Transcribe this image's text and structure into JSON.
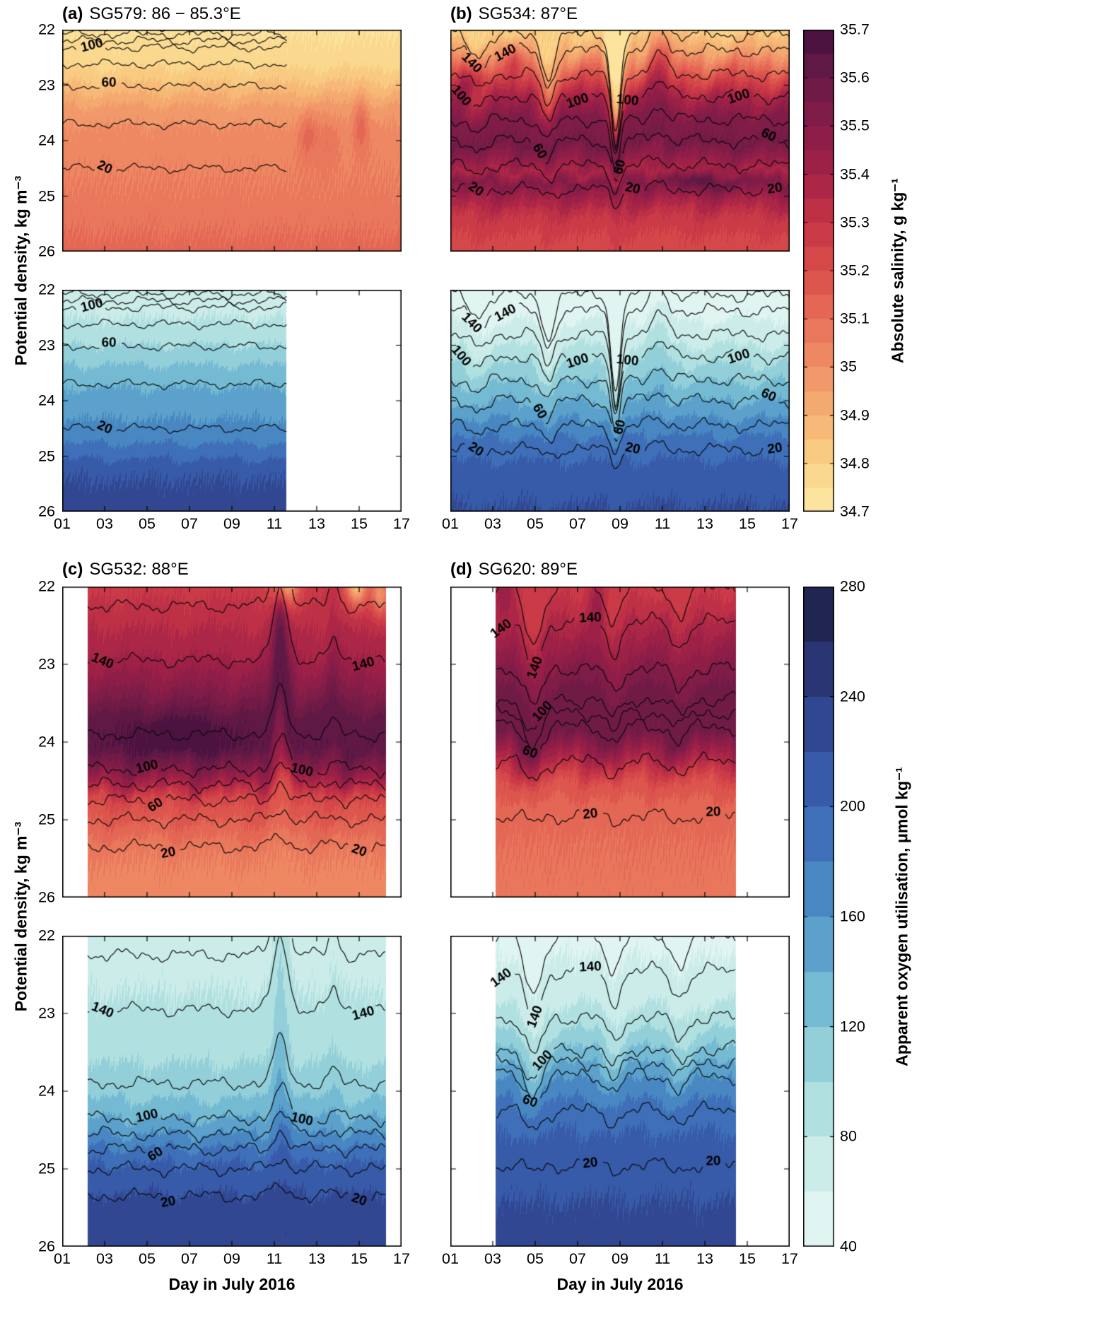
{
  "figure": {
    "ylabel": "Potential density, kg m⁻³",
    "xlabel": "Day in July 2016",
    "background": "#ffffff"
  },
  "chart_data": {
    "type": "heatmap",
    "description": "Four glider sections (a-d). Each panel pair: top = absolute salinity, bottom = apparent oxygen utilisation, versus potential density (22-26 kg/m3) and day in July 2016 (01-17), with black oxygen contours (20-160, labeled 20/60/100/140) overlaid on both.",
    "x_axis": {
      "range": [
        1,
        17
      ],
      "tick_values": [
        1,
        3,
        5,
        7,
        9,
        11,
        13,
        15,
        17
      ],
      "tick_labels": [
        "01",
        "03",
        "05",
        "07",
        "09",
        "11",
        "13",
        "15",
        "17"
      ]
    },
    "y_axis": {
      "range": [
        22,
        26
      ],
      "tick_values": [
        22,
        23,
        24,
        25,
        26
      ],
      "tick_labels": [
        "22",
        "23",
        "24",
        "25",
        "26"
      ]
    },
    "contours": {
      "values": [
        20,
        40,
        60,
        80,
        100,
        120,
        140,
        160
      ],
      "labeled": [
        20,
        60,
        100,
        140
      ]
    },
    "colorbars": [
      {
        "id": "salinity",
        "label": "Absolute salinity, g kg⁻¹",
        "min": 34.7,
        "max": 35.7,
        "step": 0.05,
        "tick_values": [
          34.7,
          34.8,
          34.9,
          35,
          35.1,
          35.2,
          35.3,
          35.4,
          35.5,
          35.6,
          35.7
        ],
        "tick_labels": [
          "34.7",
          "34.8",
          "34.9",
          "35",
          "35.1",
          "35.2",
          "35.3",
          "35.4",
          "35.5",
          "35.6",
          "35.7"
        ],
        "stops": [
          [
            34.7,
            "#FCE9A6"
          ],
          [
            34.8,
            "#FAD386"
          ],
          [
            34.9,
            "#F6B172"
          ],
          [
            35.0,
            "#F09167"
          ],
          [
            35.1,
            "#E76F58"
          ],
          [
            35.2,
            "#DA4E4B"
          ],
          [
            35.3,
            "#C63546"
          ],
          [
            35.4,
            "#A42347"
          ],
          [
            35.5,
            "#871D48"
          ],
          [
            35.6,
            "#691A46"
          ],
          [
            35.7,
            "#431140"
          ]
        ]
      },
      {
        "id": "aou",
        "label": "Apparent oxygen utilisation, μmol kg⁻¹",
        "min": 40,
        "max": 280,
        "step": 20,
        "tick_values": [
          40,
          80,
          120,
          160,
          200,
          240,
          280
        ],
        "tick_labels": [
          "40",
          "80",
          "120",
          "160",
          "200",
          "240",
          "280"
        ],
        "stops": [
          [
            40,
            "#EAF8F5"
          ],
          [
            60,
            "#D6F0ED"
          ],
          [
            80,
            "#BFE7E4"
          ],
          [
            100,
            "#A3D8DC"
          ],
          [
            120,
            "#82C6D5"
          ],
          [
            140,
            "#66AECF"
          ],
          [
            160,
            "#4F94C7"
          ],
          [
            180,
            "#4179BD"
          ],
          [
            200,
            "#3A64B2"
          ],
          [
            220,
            "#34509F"
          ],
          [
            240,
            "#2E3D85"
          ],
          [
            260,
            "#252C62"
          ],
          [
            280,
            "#1A2040"
          ]
        ]
      }
    ],
    "panels": [
      {
        "id": "a",
        "label": "(a)",
        "name": "SG579: 86 − 85.3°E",
        "day_fill_sal": [
          1,
          17
        ],
        "day_fill_aou": [
          1,
          11.58
        ],
        "day_contours": [
          1,
          11.58
        ],
        "wamp": 1.0,
        "bumps": [],
        "sal_profile": [
          [
            22,
            34.74
          ],
          [
            22.6,
            34.78
          ],
          [
            23.0,
            34.86
          ],
          [
            23.4,
            34.96
          ],
          [
            23.8,
            35.01
          ],
          [
            24.4,
            35.04
          ],
          [
            25.0,
            35.06
          ],
          [
            25.5,
            35.09
          ],
          [
            26,
            35.12
          ]
        ],
        "aou_profile": [
          [
            22,
            68
          ],
          [
            22.6,
            82
          ],
          [
            23.0,
            100
          ],
          [
            23.5,
            128
          ],
          [
            24.0,
            150
          ],
          [
            24.6,
            168
          ],
          [
            25.0,
            196
          ],
          [
            25.3,
            218
          ],
          [
            26,
            228
          ]
        ],
        "sal_spots": [
          {
            "day": 12.6,
            "rho": 23.9,
            "amp": 0.1,
            "dw": 0.5,
            "dr": 0.45
          },
          {
            "day": 15.1,
            "rho": 23.7,
            "amp": 0.13,
            "dw": 0.4,
            "dr": 0.5
          },
          {
            "day": 13.6,
            "rho": 24.0,
            "amp": 0.06,
            "dw": 0.5,
            "dr": 0.5
          }
        ],
        "contour_map": [
          [
            20,
            24.5
          ],
          [
            40,
            23.7
          ],
          [
            60,
            23.02
          ],
          [
            80,
            22.62
          ],
          [
            100,
            22.32
          ],
          [
            120,
            22.2
          ],
          [
            140,
            22.08
          ],
          [
            160,
            21.95
          ]
        ],
        "contour_labels": [
          {
            "v": 100,
            "day": 2.4
          },
          {
            "v": 60,
            "day": 3.2
          },
          {
            "v": 20,
            "day": 3.0
          }
        ]
      },
      {
        "id": "b",
        "label": "(b)",
        "name": "SG534: 87°E",
        "day_fill_sal": [
          1.05,
          17
        ],
        "day_fill_aou": [
          1.05,
          17
        ],
        "day_contours": [
          1.05,
          17
        ],
        "wamp": 1.5,
        "bumps": [
          {
            "day": 2.3,
            "amp": 0.25,
            "width": 0.5
          },
          {
            "day": 5.6,
            "amp": 0.5,
            "width": 0.4
          },
          {
            "day": 8.8,
            "amp": 1.2,
            "width": 0.3
          },
          {
            "day": 10.8,
            "amp": -0.3,
            "width": 0.5
          }
        ],
        "sal_profile": [
          [
            22,
            34.8
          ],
          [
            22.4,
            34.95
          ],
          [
            22.8,
            35.18
          ],
          [
            23.2,
            35.38
          ],
          [
            23.6,
            35.52
          ],
          [
            24.05,
            35.56
          ],
          [
            24.3,
            35.47
          ],
          [
            24.55,
            35.38
          ],
          [
            24.75,
            35.52
          ],
          [
            25.0,
            35.42
          ],
          [
            25.35,
            35.3
          ],
          [
            25.7,
            35.25
          ],
          [
            26,
            35.22
          ]
        ],
        "aou_profile": [
          [
            22,
            45
          ],
          [
            22.5,
            58
          ],
          [
            23.0,
            80
          ],
          [
            23.5,
            110
          ],
          [
            24.0,
            140
          ],
          [
            24.4,
            165
          ],
          [
            24.8,
            190
          ],
          [
            25.2,
            205
          ],
          [
            25.6,
            215
          ],
          [
            26,
            222
          ]
        ],
        "sal_spots": [
          {
            "day": 2.2,
            "rho": 22.9,
            "amp": 0.22,
            "dw": 0.8,
            "dr": 0.35
          },
          {
            "day": 3.8,
            "rho": 22.5,
            "amp": 0.18,
            "dw": 0.6,
            "dr": 0.3
          },
          {
            "day": 8.8,
            "rho": 22.2,
            "amp": -0.3,
            "dw": 0.5,
            "dr": 0.6
          },
          {
            "day": 13.0,
            "rho": 24.75,
            "amp": 0.12,
            "dw": 1.6,
            "dr": 0.18
          }
        ],
        "contour_map": [
          [
            20,
            24.88
          ],
          [
            40,
            24.45
          ],
          [
            60,
            24.0
          ],
          [
            80,
            23.62
          ],
          [
            100,
            23.2
          ],
          [
            120,
            22.8
          ],
          [
            140,
            22.38
          ],
          [
            160,
            22.1
          ]
        ],
        "contour_labels": [
          {
            "v": 140,
            "day": 2.0
          },
          {
            "v": 140,
            "day": 3.6
          },
          {
            "v": 100,
            "day": 1.5
          },
          {
            "v": 100,
            "day": 7.0
          },
          {
            "v": 100,
            "day": 9.35
          },
          {
            "v": 100,
            "day": 14.6
          },
          {
            "v": 60,
            "day": 5.2
          },
          {
            "v": 60,
            "day": 9.0
          },
          {
            "v": 60,
            "day": 16.0
          },
          {
            "v": 20,
            "day": 2.2
          },
          {
            "v": 20,
            "day": 9.6
          },
          {
            "v": 20,
            "day": 16.3
          }
        ]
      },
      {
        "id": "c",
        "label": "(c)",
        "name": "SG532: 88°E",
        "day_fill_sal": [
          2.2,
          16.25
        ],
        "day_fill_aou": [
          2.2,
          16.25
        ],
        "day_contours": [
          2.2,
          16.25
        ],
        "wamp": 1.1,
        "bumps": [
          {
            "day": 11.3,
            "amp": -0.9,
            "width": 0.45
          },
          {
            "day": 13.8,
            "amp": -0.25,
            "width": 0.3
          }
        ],
        "sal_profile": [
          [
            22,
            35.28
          ],
          [
            22.4,
            35.33
          ],
          [
            22.9,
            35.4
          ],
          [
            23.3,
            35.5
          ],
          [
            23.7,
            35.62
          ],
          [
            24.1,
            35.64
          ],
          [
            24.35,
            35.52
          ],
          [
            24.55,
            35.38
          ],
          [
            24.75,
            35.22
          ],
          [
            25.0,
            35.16
          ],
          [
            25.4,
            35.06
          ],
          [
            26,
            35.02
          ]
        ],
        "aou_profile": [
          [
            22,
            70
          ],
          [
            22.5,
            76
          ],
          [
            23.0,
            84
          ],
          [
            23.5,
            95
          ],
          [
            24.0,
            112
          ],
          [
            24.35,
            140
          ],
          [
            24.6,
            165
          ],
          [
            24.85,
            195
          ],
          [
            25.1,
            210
          ],
          [
            25.5,
            228
          ],
          [
            26,
            236
          ]
        ],
        "sal_spots": [
          {
            "day": 11.5,
            "rho": 21.9,
            "amp": -0.5,
            "dw": 0.6,
            "dr": 0.35
          },
          {
            "day": 14.9,
            "rho": 21.95,
            "amp": -0.45,
            "dw": 0.5,
            "dr": 0.3
          },
          {
            "day": 16.0,
            "rho": 22.1,
            "amp": -0.3,
            "dw": 0.4,
            "dr": 0.3
          },
          {
            "day": 6.5,
            "rho": 23.9,
            "amp": 0.06,
            "dw": 2.5,
            "dr": 0.3
          }
        ],
        "contour_map": [
          [
            20,
            25.35
          ],
          [
            40,
            25.0
          ],
          [
            60,
            24.75
          ],
          [
            80,
            24.55
          ],
          [
            100,
            24.35
          ],
          [
            120,
            23.9
          ],
          [
            140,
            22.95
          ],
          [
            160,
            22.25
          ]
        ],
        "contour_labels": [
          {
            "v": 140,
            "day": 2.9
          },
          {
            "v": 140,
            "day": 15.2
          },
          {
            "v": 100,
            "day": 12.3
          },
          {
            "v": 100,
            "day": 5.0
          },
          {
            "v": 60,
            "day": 5.4
          },
          {
            "v": 20,
            "day": 6.0
          },
          {
            "v": 20,
            "day": 15.0
          }
        ]
      },
      {
        "id": "d",
        "label": "(d)",
        "name": "SG620: 89°E",
        "day_fill_sal": [
          3.15,
          14.45
        ],
        "day_fill_aou": [
          3.15,
          14.45
        ],
        "day_contours": [
          3.15,
          14.45
        ],
        "wamp": 1.25,
        "bumps": [
          {
            "day": 4.9,
            "amp": 0.5,
            "width": 0.55
          },
          {
            "day": 8.7,
            "amp": 0.3,
            "width": 0.45
          },
          {
            "day": 11.8,
            "amp": 0.25,
            "width": 0.5
          }
        ],
        "sal_profile": [
          [
            22,
            35.28
          ],
          [
            22.5,
            35.38
          ],
          [
            23.0,
            35.5
          ],
          [
            23.4,
            35.58
          ],
          [
            23.9,
            35.56
          ],
          [
            24.2,
            35.38
          ],
          [
            24.5,
            35.2
          ],
          [
            24.8,
            35.13
          ],
          [
            25.3,
            35.1
          ],
          [
            26,
            35.08
          ]
        ],
        "aou_profile": [
          [
            22,
            55
          ],
          [
            22.6,
            68
          ],
          [
            23.1,
            90
          ],
          [
            23.5,
            125
          ],
          [
            23.8,
            155
          ],
          [
            24.1,
            180
          ],
          [
            24.5,
            200
          ],
          [
            25.0,
            212
          ],
          [
            25.5,
            222
          ],
          [
            26,
            228
          ]
        ],
        "sal_spots": [
          {
            "day": 3.6,
            "rho": 22.1,
            "amp": 0.15,
            "dw": 0.5,
            "dr": 0.3
          },
          {
            "day": 7.9,
            "rho": 22.15,
            "amp": 0.12,
            "dw": 0.4,
            "dr": 0.3
          }
        ],
        "contour_map": [
          [
            20,
            24.95
          ],
          [
            40,
            24.25
          ],
          [
            60,
            23.8
          ],
          [
            80,
            23.62
          ],
          [
            100,
            23.45
          ],
          [
            120,
            23.05
          ],
          [
            140,
            22.45
          ],
          [
            160,
            22.0
          ]
        ],
        "contour_labels": [
          {
            "v": 140,
            "day": 3.4
          },
          {
            "v": 140,
            "day": 7.6
          },
          {
            "v": 140,
            "day": 5.0
          },
          {
            "v": 100,
            "day": 5.35
          },
          {
            "v": 60,
            "day": 4.75
          },
          {
            "v": 20,
            "day": 7.6
          },
          {
            "v": 20,
            "day": 13.4
          }
        ]
      }
    ]
  }
}
